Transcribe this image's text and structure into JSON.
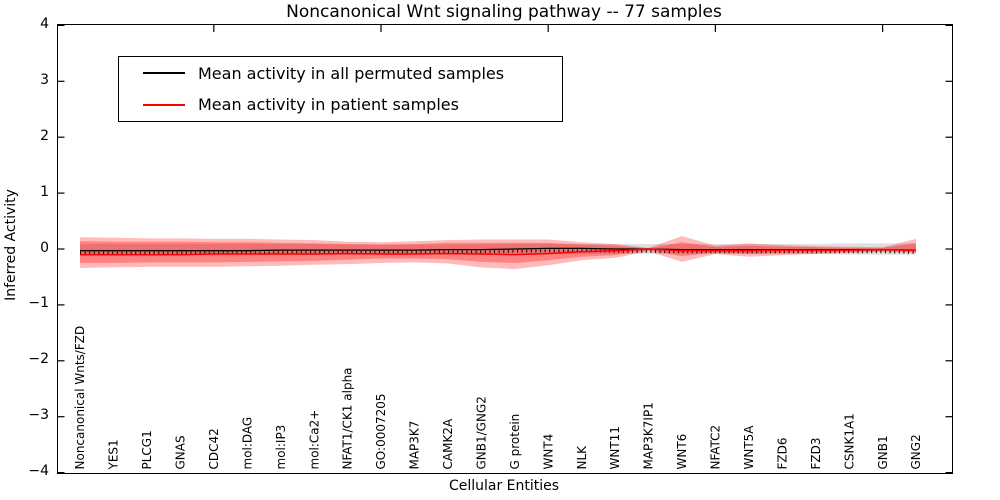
{
  "figure": {
    "title": "Noncanonical Wnt signaling pathway -- 77 samples"
  },
  "axes": {
    "ylabel": "Inferred Activity",
    "xlabel": "Cellular Entities"
  },
  "legend": {
    "entries": [
      {
        "label": "Mean activity in all permuted samples",
        "color": "#000000"
      },
      {
        "label": "Mean activity in patient samples",
        "color": "#ff0000"
      }
    ]
  },
  "chart_data": {
    "type": "line",
    "title": "Noncanonical Wnt signaling pathway -- 77 samples",
    "xlabel": "Cellular Entities",
    "ylabel": "Inferred Activity",
    "ylim": [
      -4,
      4
    ],
    "yticks": [
      4,
      3,
      2,
      1,
      0,
      -1,
      -2,
      -3,
      -4
    ],
    "ytick_labels": [
      "4",
      "3",
      "2",
      "1",
      "0",
      "−1",
      "−2",
      "−3",
      "−4"
    ],
    "grid": false,
    "legend_position": "upper left",
    "top_tick_indices": [
      4,
      9,
      14,
      19,
      24
    ],
    "categories": [
      "Noncanonical Wnts/FZD",
      "YES1",
      "PLCG1",
      "GNAS",
      "CDC42",
      "mol:DAG",
      "mol:IP3",
      "mol:Ca2+",
      "NFAT1/CK1 alpha",
      "GO:0007205",
      "MAP3K7",
      "CAMK2A",
      "GNB1/GNG2",
      "G protein",
      "WNT4",
      "NLK",
      "WNT11",
      "MAP3K7IP1",
      "WNT6",
      "NFATC2",
      "WNT5A",
      "FZD6",
      "FZD3",
      "CSNK1A1",
      "GNB1",
      "GNG2"
    ],
    "series": [
      {
        "name": "Mean activity in all permuted samples",
        "color": "#000000",
        "values": [
          -0.03,
          -0.03,
          -0.03,
          -0.03,
          -0.03,
          -0.03,
          -0.02,
          -0.02,
          -0.02,
          -0.02,
          -0.02,
          -0.01,
          -0.01,
          0.0,
          0.01,
          0.01,
          0.0,
          0.0,
          -0.01,
          -0.01,
          -0.01,
          -0.01,
          -0.01,
          -0.01,
          -0.01,
          -0.02
        ]
      },
      {
        "name": "Mean activity in patient samples",
        "color": "#ff0000",
        "values": [
          -0.1,
          -0.1,
          -0.1,
          -0.1,
          -0.09,
          -0.09,
          -0.09,
          -0.09,
          -0.08,
          -0.09,
          -0.09,
          -0.08,
          -0.09,
          -0.1,
          -0.08,
          -0.05,
          -0.03,
          0.0,
          -0.03,
          -0.03,
          -0.03,
          -0.02,
          -0.02,
          -0.02,
          -0.01,
          -0.02
        ]
      }
    ],
    "bands": [
      {
        "name": "permuted-samples-band",
        "fill": "rgba(110,110,110,0.22)",
        "upper": [
          0.09,
          0.09,
          0.09,
          0.09,
          0.09,
          0.09,
          0.09,
          0.09,
          0.08,
          0.08,
          0.08,
          0.08,
          0.08,
          0.09,
          0.09,
          0.09,
          0.09,
          0.09,
          0.09,
          0.09,
          0.09,
          0.09,
          0.09,
          0.1,
          0.1,
          0.1
        ],
        "lower": [
          -0.12,
          -0.12,
          -0.12,
          -0.12,
          -0.11,
          -0.11,
          -0.11,
          -0.11,
          -0.11,
          -0.1,
          -0.1,
          -0.1,
          -0.1,
          -0.1,
          -0.1,
          -0.09,
          -0.09,
          -0.09,
          -0.09,
          -0.09,
          -0.09,
          -0.09,
          -0.09,
          -0.1,
          -0.1,
          -0.1
        ]
      },
      {
        "name": "patient-band-outer",
        "fill": "rgba(255,0,0,0.27)",
        "upper": [
          0.21,
          0.2,
          0.19,
          0.19,
          0.18,
          0.18,
          0.17,
          0.16,
          0.13,
          0.12,
          0.14,
          0.16,
          0.17,
          0.17,
          0.17,
          0.12,
          0.09,
          0.02,
          0.23,
          0.06,
          0.1,
          0.07,
          0.05,
          0.04,
          0.03,
          0.18
        ],
        "lower": [
          -0.34,
          -0.33,
          -0.32,
          -0.32,
          -0.32,
          -0.31,
          -0.3,
          -0.28,
          -0.27,
          -0.25,
          -0.24,
          -0.26,
          -0.33,
          -0.36,
          -0.29,
          -0.2,
          -0.16,
          -0.04,
          -0.23,
          -0.09,
          -0.14,
          -0.11,
          -0.09,
          -0.07,
          -0.05,
          -0.07
        ]
      },
      {
        "name": "patient-band-inner",
        "fill": "rgba(255,0,0,0.30)",
        "upper": [
          0.14,
          0.13,
          0.13,
          0.13,
          0.12,
          0.12,
          0.11,
          0.1,
          0.09,
          0.08,
          0.09,
          0.11,
          0.11,
          0.11,
          0.11,
          0.08,
          0.06,
          0.01,
          0.12,
          0.04,
          0.06,
          0.04,
          0.03,
          0.02,
          0.02,
          0.1
        ],
        "lower": [
          -0.25,
          -0.25,
          -0.24,
          -0.24,
          -0.24,
          -0.23,
          -0.22,
          -0.21,
          -0.19,
          -0.17,
          -0.17,
          -0.18,
          -0.23,
          -0.25,
          -0.2,
          -0.14,
          -0.11,
          -0.02,
          -0.13,
          -0.06,
          -0.09,
          -0.07,
          -0.06,
          -0.05,
          -0.04,
          -0.05
        ]
      }
    ]
  }
}
